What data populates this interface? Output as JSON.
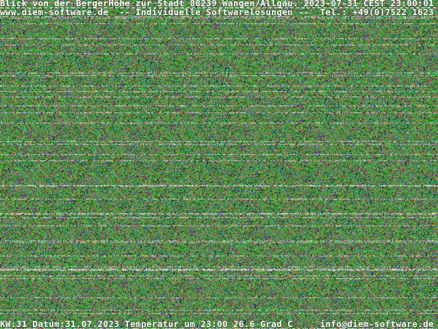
{
  "webcam": {
    "header_line1": "Blick von der BergerHöhe zur Stadt 88239 Wangen/Allgäu. 2023-07-31 CEST 23:00:01",
    "header_line2": "www.diem-software.de  -- Individuelle Softwarelösungen --  Tel.: +49(0)7522 1623",
    "footer_line": "KW:31 Datum:31.07.2023 Temperatur um 23:00 26.6 Grad C     info@diem-software.de",
    "image_content": "noise",
    "colors": {
      "text": "#ffffff",
      "noise_dominant": "#2f9a2f"
    }
  }
}
